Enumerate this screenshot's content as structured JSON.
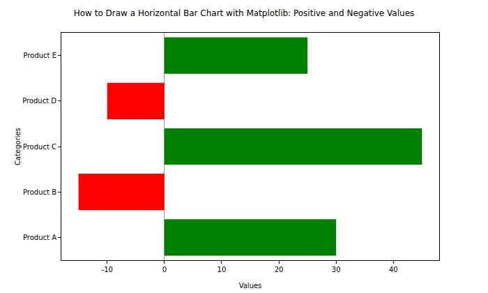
{
  "chart_data": {
    "type": "bar",
    "orientation": "horizontal",
    "title": "How to Draw a Horizontal Bar Chart with Matplotlib: Positive and Negative Values",
    "x_label": "Values",
    "y_label": "Categories",
    "categories": [
      "Product A",
      "Product B",
      "Product C",
      "Product D",
      "Product E"
    ],
    "values": [
      30,
      -15,
      45,
      -10,
      25
    ],
    "colors": [
      "green",
      "red",
      "green",
      "red",
      "green"
    ],
    "xlim": [
      -18,
      48
    ],
    "xticks": [
      -10,
      0,
      10,
      20,
      30,
      40
    ],
    "grid": false
  }
}
